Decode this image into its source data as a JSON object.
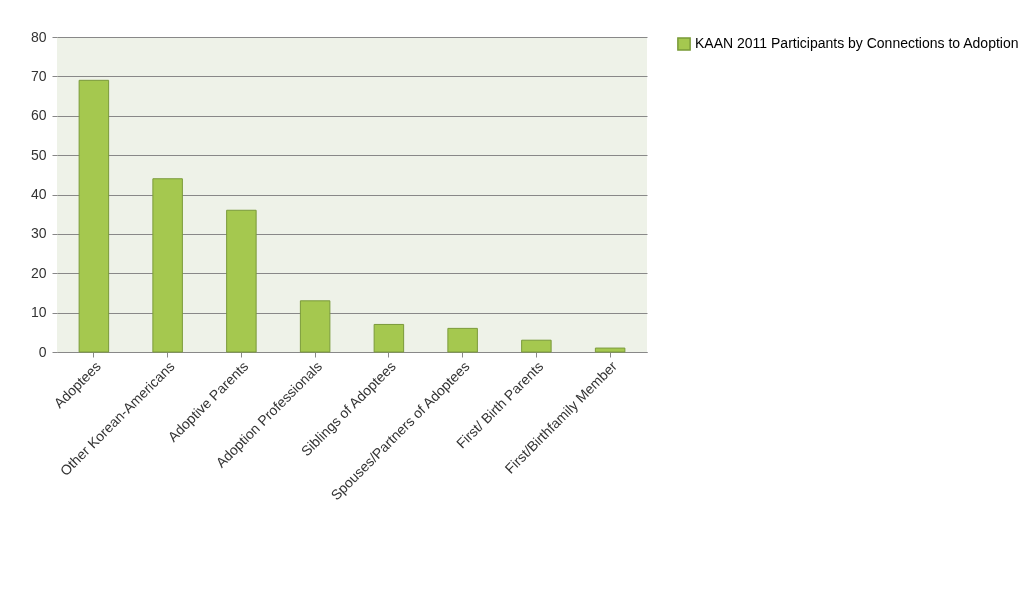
{
  "chart_data": {
    "type": "bar",
    "categories": [
      "Adoptees",
      "Other Korean-Americans",
      "Adoptive Parents",
      "Adoption Professionals",
      "Siblings of Adoptees",
      "Spouses/Partners of Adoptees",
      "First/ Birth Parents",
      "First/Birthfamily Member"
    ],
    "series": [
      {
        "name": "KAAN 2011 Participants by Connections to Adoption",
        "color": "#a5c84f",
        "values": [
          69,
          44,
          36,
          13,
          7,
          6,
          3,
          1
        ]
      }
    ],
    "ylim": [
      0,
      80
    ],
    "yticks": [
      0,
      10,
      20,
      30,
      40,
      50,
      60,
      70,
      80
    ],
    "grid": "y",
    "legend": "right"
  }
}
